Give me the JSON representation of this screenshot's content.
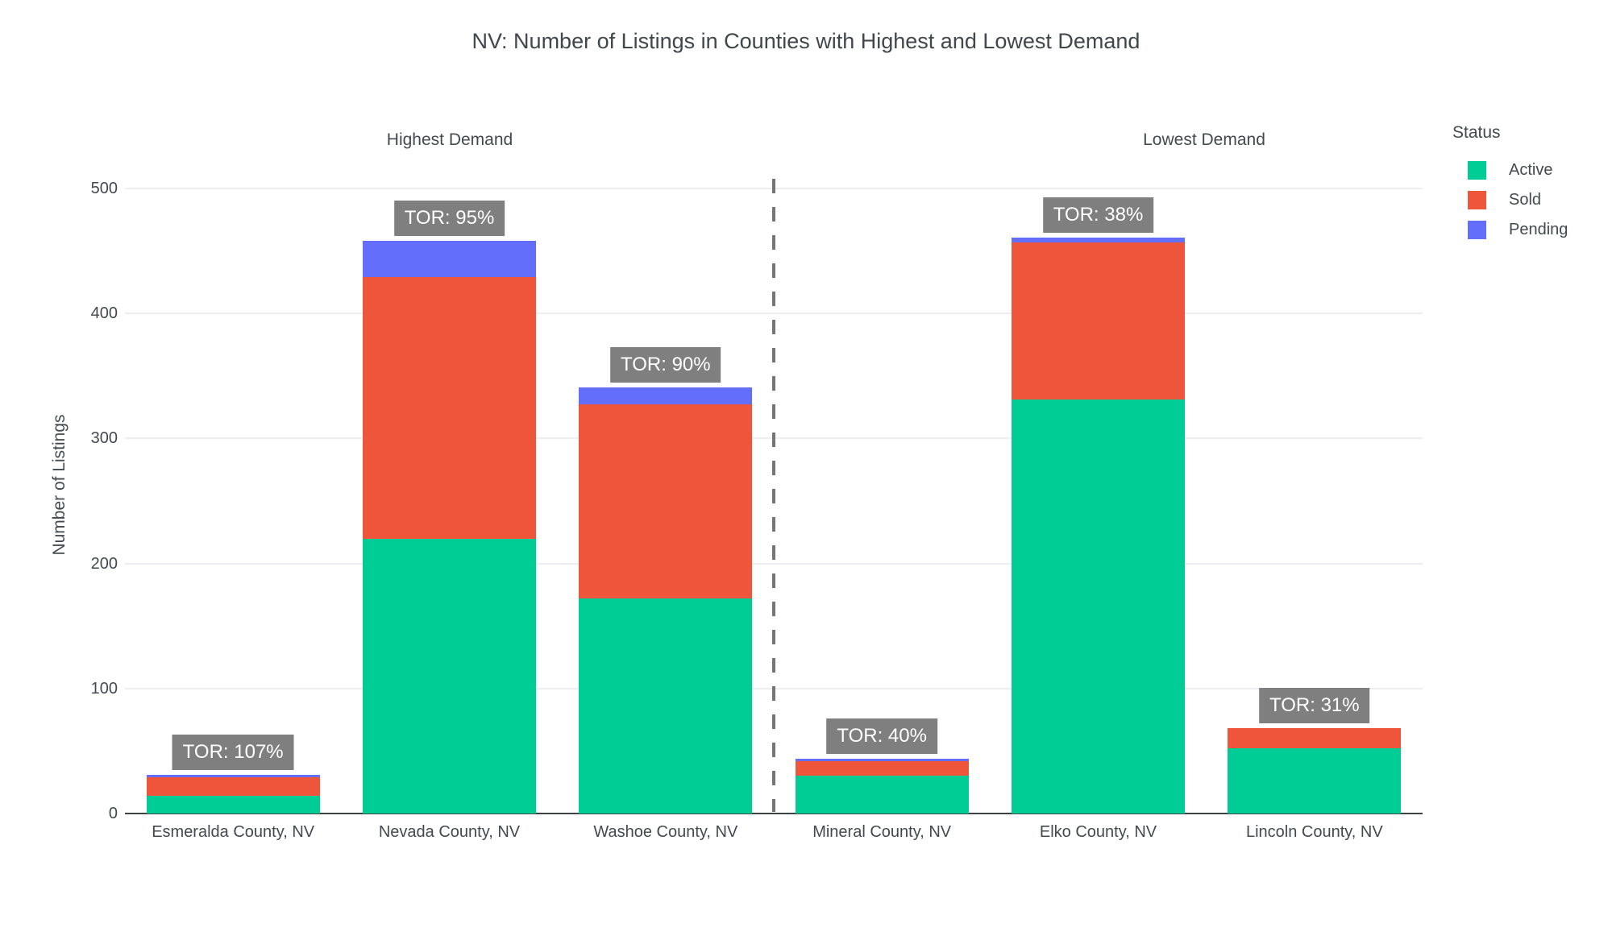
{
  "chart_data": {
    "type": "bar",
    "stacked": true,
    "title": "NV: Number of Listings in Counties with Highest and Lowest Demand",
    "xlabel": "",
    "ylabel": "Number of Listings",
    "ylim": [
      0,
      500
    ],
    "yticks": [
      0,
      100,
      200,
      300,
      400,
      500
    ],
    "grid": true,
    "legend_position": "right",
    "legend_title": "Status",
    "categories": [
      "Esmeralda County, NV",
      "Nevada County, NV",
      "Washoe County, NV",
      "Mineral County, NV",
      "Elko County, NV",
      "Lincoln County, NV"
    ],
    "series": [
      {
        "name": "Active",
        "color": "#00CC96",
        "values": [
          14,
          220,
          172,
          30,
          331,
          52
        ]
      },
      {
        "name": "Sold",
        "color": "#EF553B",
        "values": [
          15,
          209,
          155,
          12,
          126,
          16
        ]
      },
      {
        "name": "Pending",
        "color": "#636EFA",
        "values": [
          2,
          29,
          14,
          2,
          4,
          0
        ]
      }
    ],
    "bar_labels": [
      "TOR: 107%",
      "TOR: 95%",
      "TOR: 90%",
      "TOR: 40%",
      "TOR: 38%",
      "TOR: 31%"
    ],
    "group_annotations": [
      {
        "text": "Highest Demand"
      },
      {
        "text": "Lowest Demand"
      }
    ],
    "separator": {
      "after_category_index": 2,
      "style": "dashed"
    },
    "colors": {
      "background": "#ffffff",
      "axis_text": "#444950",
      "axis_line": "#3f4245",
      "grid": "#eceef2",
      "separator": "#757575",
      "label_bg": "#7f7f7f",
      "label_text": "#ffffff"
    }
  }
}
